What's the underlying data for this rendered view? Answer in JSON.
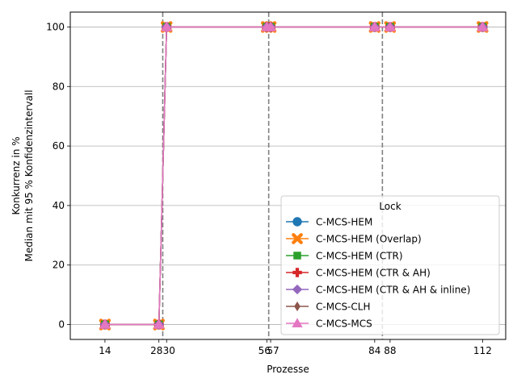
{
  "chart_data": {
    "type": "line",
    "title": "",
    "xlabel": "Prozesse",
    "ylabel": [
      "Konkurrenz in %",
      "Median mit 95 % Konfidenzintervall"
    ],
    "xlim": [
      5,
      118
    ],
    "ylim": [
      -5,
      105
    ],
    "x_ticks": [
      14,
      28,
      30,
      56,
      57,
      84,
      88,
      112
    ],
    "x_tick_labels": [
      "14",
      "28",
      "30",
      "56",
      "57",
      "84",
      "88",
      "112"
    ],
    "y_ticks": [
      0,
      20,
      40,
      60,
      80,
      100
    ],
    "y_tick_labels": [
      "0",
      "20",
      "40",
      "60",
      "80",
      "100"
    ],
    "grid": "horizontal",
    "vlines": [
      29,
      56.5,
      86
    ],
    "legend": {
      "title": "Lock",
      "placement": "lower-right"
    },
    "x": [
      14,
      28,
      30,
      56,
      57,
      84,
      88,
      112
    ],
    "series": [
      {
        "name": "C-MCS-HEM",
        "color": "#1f77b4",
        "marker": "circle",
        "values": [
          0,
          0,
          100,
          100,
          100,
          100,
          100,
          100
        ]
      },
      {
        "name": "C-MCS-HEM (Overlap)",
        "color": "#ff7f0e",
        "marker": "x",
        "values": [
          0,
          0,
          100,
          100,
          100,
          100,
          100,
          100
        ]
      },
      {
        "name": "C-MCS-HEM (CTR)",
        "color": "#2ca02c",
        "marker": "square",
        "values": [
          0,
          0,
          100,
          100,
          100,
          100,
          100,
          100
        ]
      },
      {
        "name": "C-MCS-HEM (CTR & AH)",
        "color": "#d62728",
        "marker": "plus",
        "values": [
          0,
          0,
          100,
          100,
          100,
          100,
          100,
          100
        ]
      },
      {
        "name": "C-MCS-HEM (CTR & AH & inline)",
        "color": "#9467bd",
        "marker": "diamond",
        "values": [
          0,
          0,
          100,
          100,
          100,
          100,
          100,
          100
        ]
      },
      {
        "name": "C-MCS-CLH",
        "color": "#8c564b",
        "marker": "thin-diamond",
        "values": [
          0,
          0,
          100,
          100,
          100,
          100,
          100,
          100
        ]
      },
      {
        "name": "C-MCS-MCS",
        "color": "#e377c2",
        "marker": "triangle",
        "values": [
          0,
          0,
          100,
          100,
          100,
          100,
          100,
          100
        ]
      }
    ]
  }
}
